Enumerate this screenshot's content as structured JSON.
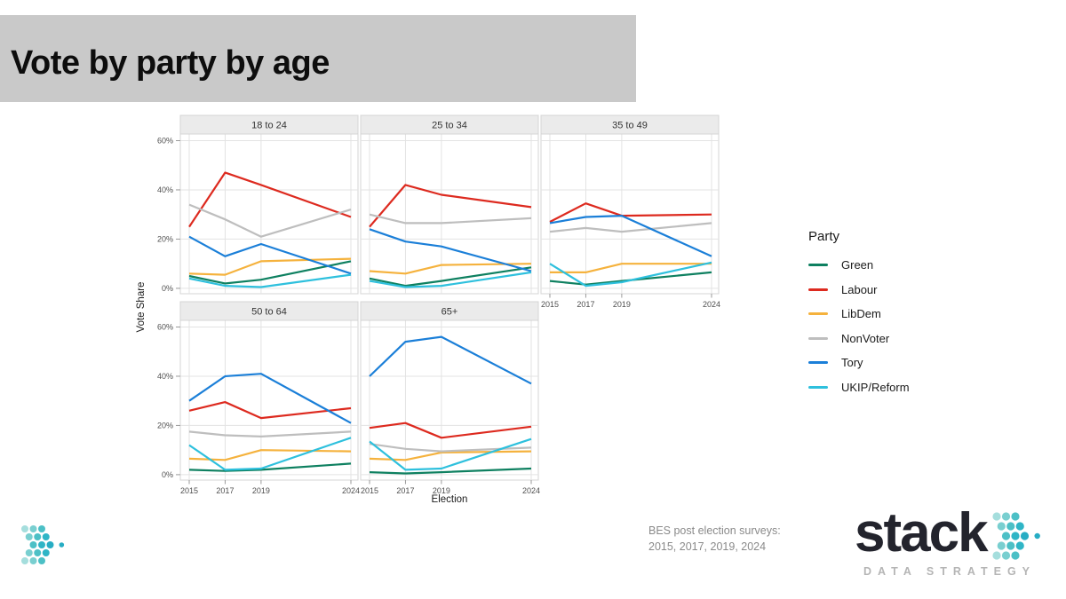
{
  "title": "Vote by party by age",
  "legend": {
    "title": "Party"
  },
  "footer": {
    "source_line1": "BES post election surveys:",
    "source_line2": "2015, 2017, 2019, 2024",
    "brand_name": "stack",
    "brand_tagline": "DATA STRATEGY"
  },
  "icons": {
    "brand_chevron": "dots-chevron-right-icon",
    "corner_logo": "dots-chevron-right-icon"
  },
  "chart_data": {
    "type": "line",
    "title": "",
    "xlabel": "Election",
    "ylabel": "Vote Share",
    "x": [
      2015,
      2017,
      2019,
      2024
    ],
    "x_tick_labels": [
      "2015",
      "2017",
      "2019",
      "2024"
    ],
    "y_ticks": [
      0,
      20,
      40,
      60
    ],
    "y_tick_labels": [
      "0%",
      "20%",
      "40%",
      "60%"
    ],
    "ylim": [
      0,
      60
    ],
    "grid": true,
    "legend_position": "right",
    "facet_by": "age group",
    "parties": [
      {
        "name": "Green",
        "color": "#0e8060"
      },
      {
        "name": "Labour",
        "color": "#dd2a1f"
      },
      {
        "name": "LibDem",
        "color": "#f5b23d"
      },
      {
        "name": "NonVoter",
        "color": "#bebebe"
      },
      {
        "name": "Tory",
        "color": "#1b7fd8"
      },
      {
        "name": "UKIP/Reform",
        "color": "#2ec0dd"
      }
    ],
    "facets": [
      {
        "label": "18 to 24",
        "series": {
          "Green": [
            5,
            2,
            3.5,
            11
          ],
          "Labour": [
            25,
            47,
            42,
            29
          ],
          "LibDem": [
            6,
            5.5,
            11,
            12
          ],
          "NonVoter": [
            34,
            28,
            21,
            32
          ],
          "Tory": [
            21,
            13,
            18,
            6
          ],
          "UKIP/Reform": [
            4,
            1,
            0.5,
            5.5
          ]
        }
      },
      {
        "label": "25 to 34",
        "series": {
          "Green": [
            4,
            1,
            3,
            8.5
          ],
          "Labour": [
            25,
            42,
            38,
            33
          ],
          "LibDem": [
            7,
            6,
            9.5,
            10
          ],
          "NonVoter": [
            30,
            26.5,
            26.5,
            28.5
          ],
          "Tory": [
            24,
            19,
            17,
            7
          ],
          "UKIP/Reform": [
            3,
            0.5,
            1,
            6.5
          ]
        }
      },
      {
        "label": "35 to 49",
        "series": {
          "Green": [
            3,
            1.5,
            3,
            6.5
          ],
          "Labour": [
            27,
            34.5,
            29.5,
            30
          ],
          "LibDem": [
            6.5,
            6.5,
            10,
            10
          ],
          "NonVoter": [
            23,
            24.5,
            23,
            26.5
          ],
          "Tory": [
            26.5,
            29,
            29.5,
            13
          ],
          "UKIP/Reform": [
            10,
            1,
            2.5,
            10.5
          ]
        }
      },
      {
        "label": "50 to 64",
        "series": {
          "Green": [
            2,
            1.5,
            2,
            4.5
          ],
          "Labour": [
            26,
            29.5,
            23,
            27
          ],
          "LibDem": [
            6.5,
            6,
            10,
            9.5
          ],
          "NonVoter": [
            17.5,
            16,
            15.5,
            17.5
          ],
          "Tory": [
            30,
            40,
            41,
            21
          ],
          "UKIP/Reform": [
            12,
            2,
            2.5,
            15
          ]
        }
      },
      {
        "label": "65+",
        "series": {
          "Green": [
            1,
            0.5,
            1,
            2.5
          ],
          "Labour": [
            19,
            21,
            15,
            19.5
          ],
          "LibDem": [
            6.5,
            6,
            9,
            9.5
          ],
          "NonVoter": [
            12.5,
            10.5,
            9.5,
            11
          ],
          "Tory": [
            40,
            54,
            56,
            37
          ],
          "UKIP/Reform": [
            13.5,
            2,
            2.5,
            14.5
          ]
        }
      }
    ]
  }
}
